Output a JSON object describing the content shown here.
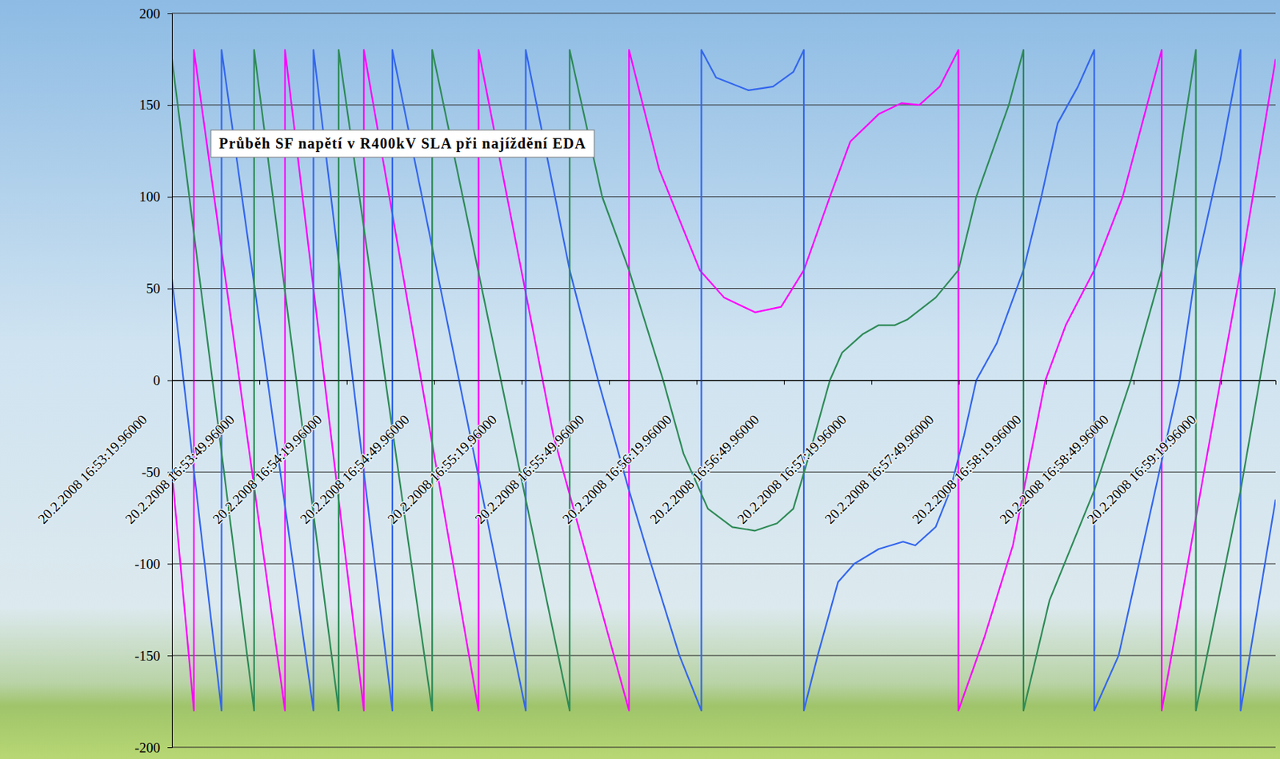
{
  "chart_data": {
    "type": "line",
    "title": "Průběh SF napětí v R400kV SLA při najíždění EDA",
    "xlim": [
      "2008-02-20T16:53:19.960",
      "2008-02-20T16:59:38.660"
    ],
    "xticks": [
      {
        "value": "2008-02-20T16:53:19.960",
        "label": "20.2.2008 16:53:19.96000"
      },
      {
        "value": "2008-02-20T16:53:49.960",
        "label": "20.2.2008 16:53:49.96000"
      },
      {
        "value": "2008-02-20T16:54:19.960",
        "label": "20.2.2008 16:54:19.96000"
      },
      {
        "value": "2008-02-20T16:54:49.960",
        "label": "20.2.2008 16:54:49.96000"
      },
      {
        "value": "2008-02-20T16:55:19.960",
        "label": "20.2.2008 16:55:19.96000"
      },
      {
        "value": "2008-02-20T16:55:49.960",
        "label": "20.2.2008 16:55:49.96000"
      },
      {
        "value": "2008-02-20T16:56:19.960",
        "label": "20.2.2008 16:56:19.96000"
      },
      {
        "value": "2008-02-20T16:56:49.960",
        "label": "20.2.2008 16:56:49.96000"
      },
      {
        "value": "2008-02-20T16:57:19.960",
        "label": "20.2.2008 16:57:19.96000"
      },
      {
        "value": "2008-02-20T16:57:49.960",
        "label": "20.2.2008 16:57:49.96000"
      },
      {
        "value": "2008-02-20T16:58:19.960",
        "label": "20.2.2008 16:58:19.96000"
      },
      {
        "value": "2008-02-20T16:58:49.960",
        "label": "20.2.2008 16:58:49.96000"
      },
      {
        "value": "2008-02-20T16:59:19.960",
        "label": "20.2.2008 16:59:19.96000"
      }
    ],
    "ylim": [
      -200,
      200
    ],
    "yticks": [
      -200,
      -150,
      -100,
      -50,
      0,
      50,
      100,
      150,
      200
    ],
    "grid": true,
    "series": [
      {
        "color": "#ff00ff",
        "x": [
          "2008-02-20T16:53:19.960",
          "2008-02-20T16:53:27.490",
          "2008-02-20T16:53:27.490",
          "2008-02-20T16:53:58.750",
          "2008-02-20T16:53:58.750",
          "2008-02-20T16:54:25.820",
          "2008-02-20T16:54:25.820",
          "2008-02-20T16:55:05.170",
          "2008-02-20T16:55:05.170",
          "2008-02-20T16:55:30.840",
          "2008-02-20T16:55:56.800",
          "2008-02-20T16:55:56.800",
          "2008-02-20T16:56:07.120",
          "2008-02-20T16:56:21.080",
          "2008-02-20T16:56:29.450",
          "2008-02-20T16:56:40.050",
          "2008-02-20T16:56:48.980",
          "2008-02-20T16:56:56.800",
          "2008-02-20T16:57:05.730",
          "2008-02-20T16:57:12.710",
          "2008-02-20T16:57:22.470",
          "2008-02-20T16:57:30.290",
          "2008-02-20T16:57:36.430",
          "2008-02-20T16:57:43.400",
          "2008-02-20T16:57:49.820",
          "2008-02-20T16:57:49.820",
          "2008-02-20T16:57:58.750",
          "2008-02-20T16:58:08.520",
          "2008-02-20T16:58:19.680",
          "2008-02-20T16:58:26.660",
          "2008-02-20T16:58:36.430",
          "2008-02-20T16:58:46.190",
          "2008-02-20T16:58:59.590",
          "2008-02-20T16:58:59.590",
          "2008-02-20T16:59:14.100",
          "2008-02-20T16:59:26.660",
          "2008-02-20T16:59:38.660"
        ],
        "values": [
          -50,
          -180,
          180,
          -180,
          180,
          -180,
          180,
          -180,
          180,
          -30,
          -180,
          180,
          115,
          60,
          45,
          37,
          40,
          60,
          100,
          130,
          145,
          151,
          150,
          160,
          180,
          -180,
          -140,
          -90,
          0,
          30,
          60,
          100,
          180,
          -180,
          -50,
          60,
          175
        ]
      },
      {
        "color": "#3366ee",
        "x": [
          "2008-02-20T16:53:19.960",
          "2008-02-20T16:53:36.980",
          "2008-02-20T16:53:36.980",
          "2008-02-20T16:54:08.520",
          "2008-02-20T16:54:08.520",
          "2008-02-20T16:54:35.590",
          "2008-02-20T16:54:35.590",
          "2008-02-20T16:55:21.360",
          "2008-02-20T16:55:21.360",
          "2008-02-20T16:55:36.430",
          "2008-02-20T16:55:46.190",
          "2008-02-20T16:55:56.800",
          "2008-02-20T16:56:04.330",
          "2008-02-20T16:56:14.100",
          "2008-02-20T16:56:21.630",
          "2008-02-20T16:56:21.630",
          "2008-02-20T16:56:26.660",
          "2008-02-20T16:56:37.820",
          "2008-02-20T16:56:46.190",
          "2008-02-20T16:56:53.170",
          "2008-02-20T16:56:56.800",
          "2008-02-20T16:56:56.800",
          "2008-02-20T16:57:01.540",
          "2008-02-20T16:57:08.520",
          "2008-02-20T16:57:14.100",
          "2008-02-20T16:57:22.470",
          "2008-02-20T16:57:30.840",
          "2008-02-20T16:57:35.030",
          "2008-02-20T16:57:42.010",
          "2008-02-20T16:57:47.030",
          "2008-02-20T16:57:51.770",
          "2008-02-20T16:57:55.960",
          "2008-02-20T16:58:02.940",
          "2008-02-20T16:58:12.150",
          "2008-02-20T16:58:18.290",
          "2008-02-20T16:58:23.870",
          "2008-02-20T16:58:30.840",
          "2008-02-20T16:58:36.430",
          "2008-02-20T16:58:36.430",
          "2008-02-20T16:58:44.800",
          "2008-02-20T16:58:51.770",
          "2008-02-20T16:58:57.360",
          "2008-02-20T16:59:05.730",
          "2008-02-20T16:59:11.310",
          "2008-02-20T16:59:19.680",
          "2008-02-20T16:59:26.660",
          "2008-02-20T16:59:26.660",
          "2008-02-20T16:59:38.660"
        ],
        "values": [
          55,
          -180,
          180,
          -180,
          180,
          -180,
          180,
          -180,
          180,
          60,
          0,
          -60,
          -100,
          -150,
          -180,
          180,
          165,
          158,
          160,
          168,
          180,
          -180,
          -150,
          -110,
          -100,
          -92,
          -88,
          -90,
          -80,
          -60,
          -30,
          0,
          20,
          60,
          100,
          140,
          160,
          180,
          -180,
          -150,
          -100,
          -60,
          0,
          60,
          120,
          180,
          -180,
          -65
        ]
      },
      {
        "color": "#2e8b57",
        "x": [
          "2008-02-20T16:53:19.960",
          "2008-02-20T16:53:48.150",
          "2008-02-20T16:53:48.150",
          "2008-02-20T16:54:17.170",
          "2008-02-20T16:54:17.170",
          "2008-02-20T16:54:49.260",
          "2008-02-20T16:54:49.260",
          "2008-02-20T16:55:36.430",
          "2008-02-20T16:55:36.430",
          "2008-02-20T16:55:47.590",
          "2008-02-20T16:55:56.800",
          "2008-02-20T16:56:08.520",
          "2008-02-20T16:56:15.490",
          "2008-02-20T16:56:23.870",
          "2008-02-20T16:56:32.240",
          "2008-02-20T16:56:40.050",
          "2008-02-20T16:56:47.590",
          "2008-02-20T16:56:53.170",
          "2008-02-20T16:56:58.750",
          "2008-02-20T16:57:05.730",
          "2008-02-20T16:57:09.910",
          "2008-02-20T16:57:16.890",
          "2008-02-20T16:57:22.470",
          "2008-02-20T16:57:28.050",
          "2008-02-20T16:57:32.240",
          "2008-02-20T16:57:42.010",
          "2008-02-20T16:57:49.820",
          "2008-02-20T16:57:55.960",
          "2008-02-20T16:58:07.120",
          "2008-02-20T16:58:12.150",
          "2008-02-20T16:58:12.150",
          "2008-02-20T16:58:21.080",
          "2008-02-20T16:58:36.430",
          "2008-02-20T16:58:48.980",
          "2008-02-20T16:58:59.590",
          "2008-02-20T16:59:11.310",
          "2008-02-20T16:59:11.310",
          "2008-02-20T16:59:26.660",
          "2008-02-20T16:59:38.660"
        ],
        "values": [
          175,
          -180,
          180,
          -180,
          180,
          -180,
          180,
          -180,
          180,
          100,
          60,
          0,
          -40,
          -70,
          -80,
          -82,
          -78,
          -70,
          -40,
          0,
          15,
          25,
          30,
          30,
          33,
          45,
          60,
          100,
          150,
          180,
          -180,
          -120,
          -60,
          0,
          60,
          180,
          -180,
          -60,
          50
        ]
      }
    ]
  }
}
